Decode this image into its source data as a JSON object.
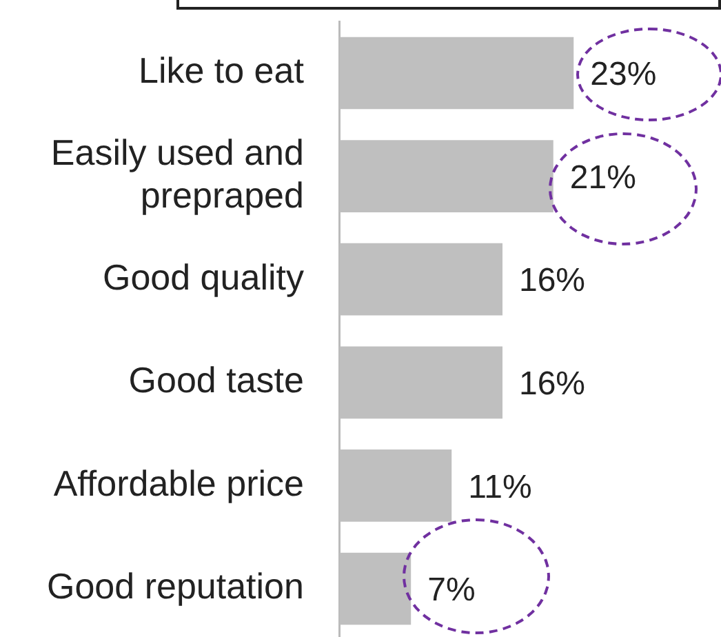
{
  "chart_data": {
    "type": "bar",
    "orientation": "horizontal",
    "categories": [
      "Like to eat",
      "Easily used and prepraped",
      "Good quality",
      "Good taste",
      "Affordable price",
      "Good reputation"
    ],
    "values": [
      23,
      21,
      16,
      16,
      11,
      7
    ],
    "color": "#bfbfbf",
    "value_labels": [
      "23%",
      "21%",
      "16%",
      "16%",
      "11%",
      "7%"
    ],
    "tick_labels": "y",
    "legend": false
  }
}
